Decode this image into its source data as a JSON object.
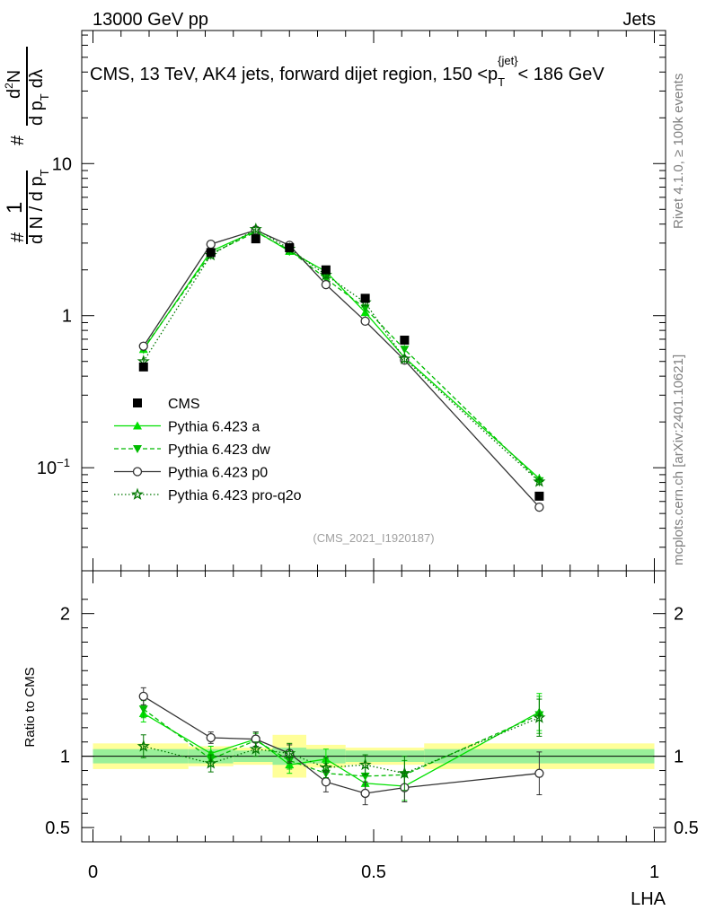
{
  "header": {
    "energy_label": "13000 GeV pp",
    "process_label": "Jets"
  },
  "chart_data": {
    "type": "scatter",
    "title_parts": {
      "main": "CMS, 13 TeV, AK4 jets, forward dijet region, 150 <p",
      "sub": "T",
      "sup": "{jet}",
      "tail": "< 186 GeV"
    },
    "ylabel_parts": {
      "hash1": "#",
      "one": "1",
      "dN": "d N / d p",
      "dN_sub": "T",
      "hash2": "#",
      "num": "d",
      "num_sup": "2",
      "num_tail": "N",
      "den": "d p",
      "den_sub": "T",
      "den_tail": "dλ"
    },
    "xlabel": "LHA",
    "ratio_ylabel": "Ratio to CMS",
    "side_label_top": "Rivet 4.1.0, ≥ 100k events",
    "side_label_bottom": "mcplots.cern.ch [arXiv:2401.10621]",
    "analysis_id": "(CMS_2021_I1920187)",
    "main_y_log_range": [
      0.021,
      75
    ],
    "main_y_ticks": [
      {
        "v": 0.1,
        "base": "10",
        "exp": "−1"
      },
      {
        "v": 1,
        "base": "1",
        "exp": ""
      },
      {
        "v": 10,
        "base": "10",
        "exp": ""
      }
    ],
    "ratio_ylim": [
      0.4,
      2.3
    ],
    "ratio_y_ticks": [
      {
        "v": 0.5,
        "label": "0.5"
      },
      {
        "v": 1,
        "label": "1"
      },
      {
        "v": 2,
        "label": "2"
      }
    ],
    "xlim": [
      -0.02,
      1.02
    ],
    "x_ticks": [
      {
        "v": 0,
        "label": "0"
      },
      {
        "v": 0.5,
        "label": "0.5"
      },
      {
        "v": 1,
        "label": "1"
      }
    ],
    "data": {
      "name": "CMS",
      "x": [
        0.09,
        0.21,
        0.29,
        0.35,
        0.415,
        0.485,
        0.555,
        0.795
      ],
      "y": [
        0.46,
        2.6,
        3.2,
        2.8,
        2.0,
        1.3,
        0.69,
        0.065
      ],
      "bins": [
        [
          0.0,
          0.17
        ],
        [
          0.17,
          0.25
        ],
        [
          0.25,
          0.32
        ],
        [
          0.32,
          0.38
        ],
        [
          0.38,
          0.45
        ],
        [
          0.45,
          0.59
        ],
        [
          0.59,
          0.59
        ],
        [
          0.59,
          1.0
        ]
      ],
      "band_inner": [
        0.05,
        0.05,
        0.04,
        0.06,
        0.05,
        0.04,
        0.05,
        0.05
      ],
      "band_outer": [
        0.09,
        0.07,
        0.06,
        0.15,
        0.08,
        0.06,
        0.08,
        0.09
      ]
    },
    "series": [
      {
        "name": "Pythia 6.423 a",
        "color": "#00e000",
        "marker": "triangle-up",
        "dash": "",
        "y": [
          0.6,
          2.65,
          3.6,
          2.65,
          1.95,
          1.05,
          0.53,
          0.085
        ],
        "ratio": [
          1.3,
          1.02,
          1.12,
          0.94,
          0.98,
          0.81,
          0.79,
          1.31
        ],
        "ratio_err": [
          0.06,
          0.05,
          0.05,
          0.06,
          0.07,
          0.06,
          0.1,
          0.13
        ]
      },
      {
        "name": "Pythia 6.423 dw",
        "color": "#00bb00",
        "marker": "triangle-down",
        "dash": "5,3",
        "y": [
          0.61,
          2.55,
          3.55,
          2.7,
          1.75,
          1.12,
          0.6,
          0.082
        ],
        "ratio": [
          1.33,
          0.98,
          1.11,
          0.97,
          0.88,
          0.86,
          0.87,
          1.29
        ],
        "ratio_err": [
          0.06,
          0.05,
          0.05,
          0.06,
          0.07,
          0.06,
          0.1,
          0.13
        ]
      },
      {
        "name": "Pythia 6.423 p0",
        "color": "#333333",
        "marker": "circle-open",
        "dash": "",
        "y": [
          0.63,
          2.95,
          3.65,
          2.9,
          1.6,
          0.92,
          0.51,
          0.055
        ],
        "ratio": [
          1.42,
          1.13,
          1.12,
          1.02,
          0.82,
          0.74,
          0.78,
          0.88
        ],
        "ratio_err": [
          0.06,
          0.04,
          0.05,
          0.06,
          0.07,
          0.08,
          0.1,
          0.15
        ]
      },
      {
        "name": "Pythia 6.423 pro-q2o",
        "color": "#007700",
        "marker": "star",
        "dash": "1.5,2.5",
        "y": [
          0.5,
          2.5,
          3.7,
          2.75,
          1.85,
          1.22,
          0.52,
          0.081
        ],
        "ratio": [
          1.07,
          0.95,
          1.05,
          1.02,
          0.92,
          0.94,
          0.88,
          1.27
        ],
        "ratio_err": [
          0.08,
          0.06,
          0.05,
          0.07,
          0.07,
          0.07,
          0.12,
          0.13
        ]
      }
    ]
  }
}
